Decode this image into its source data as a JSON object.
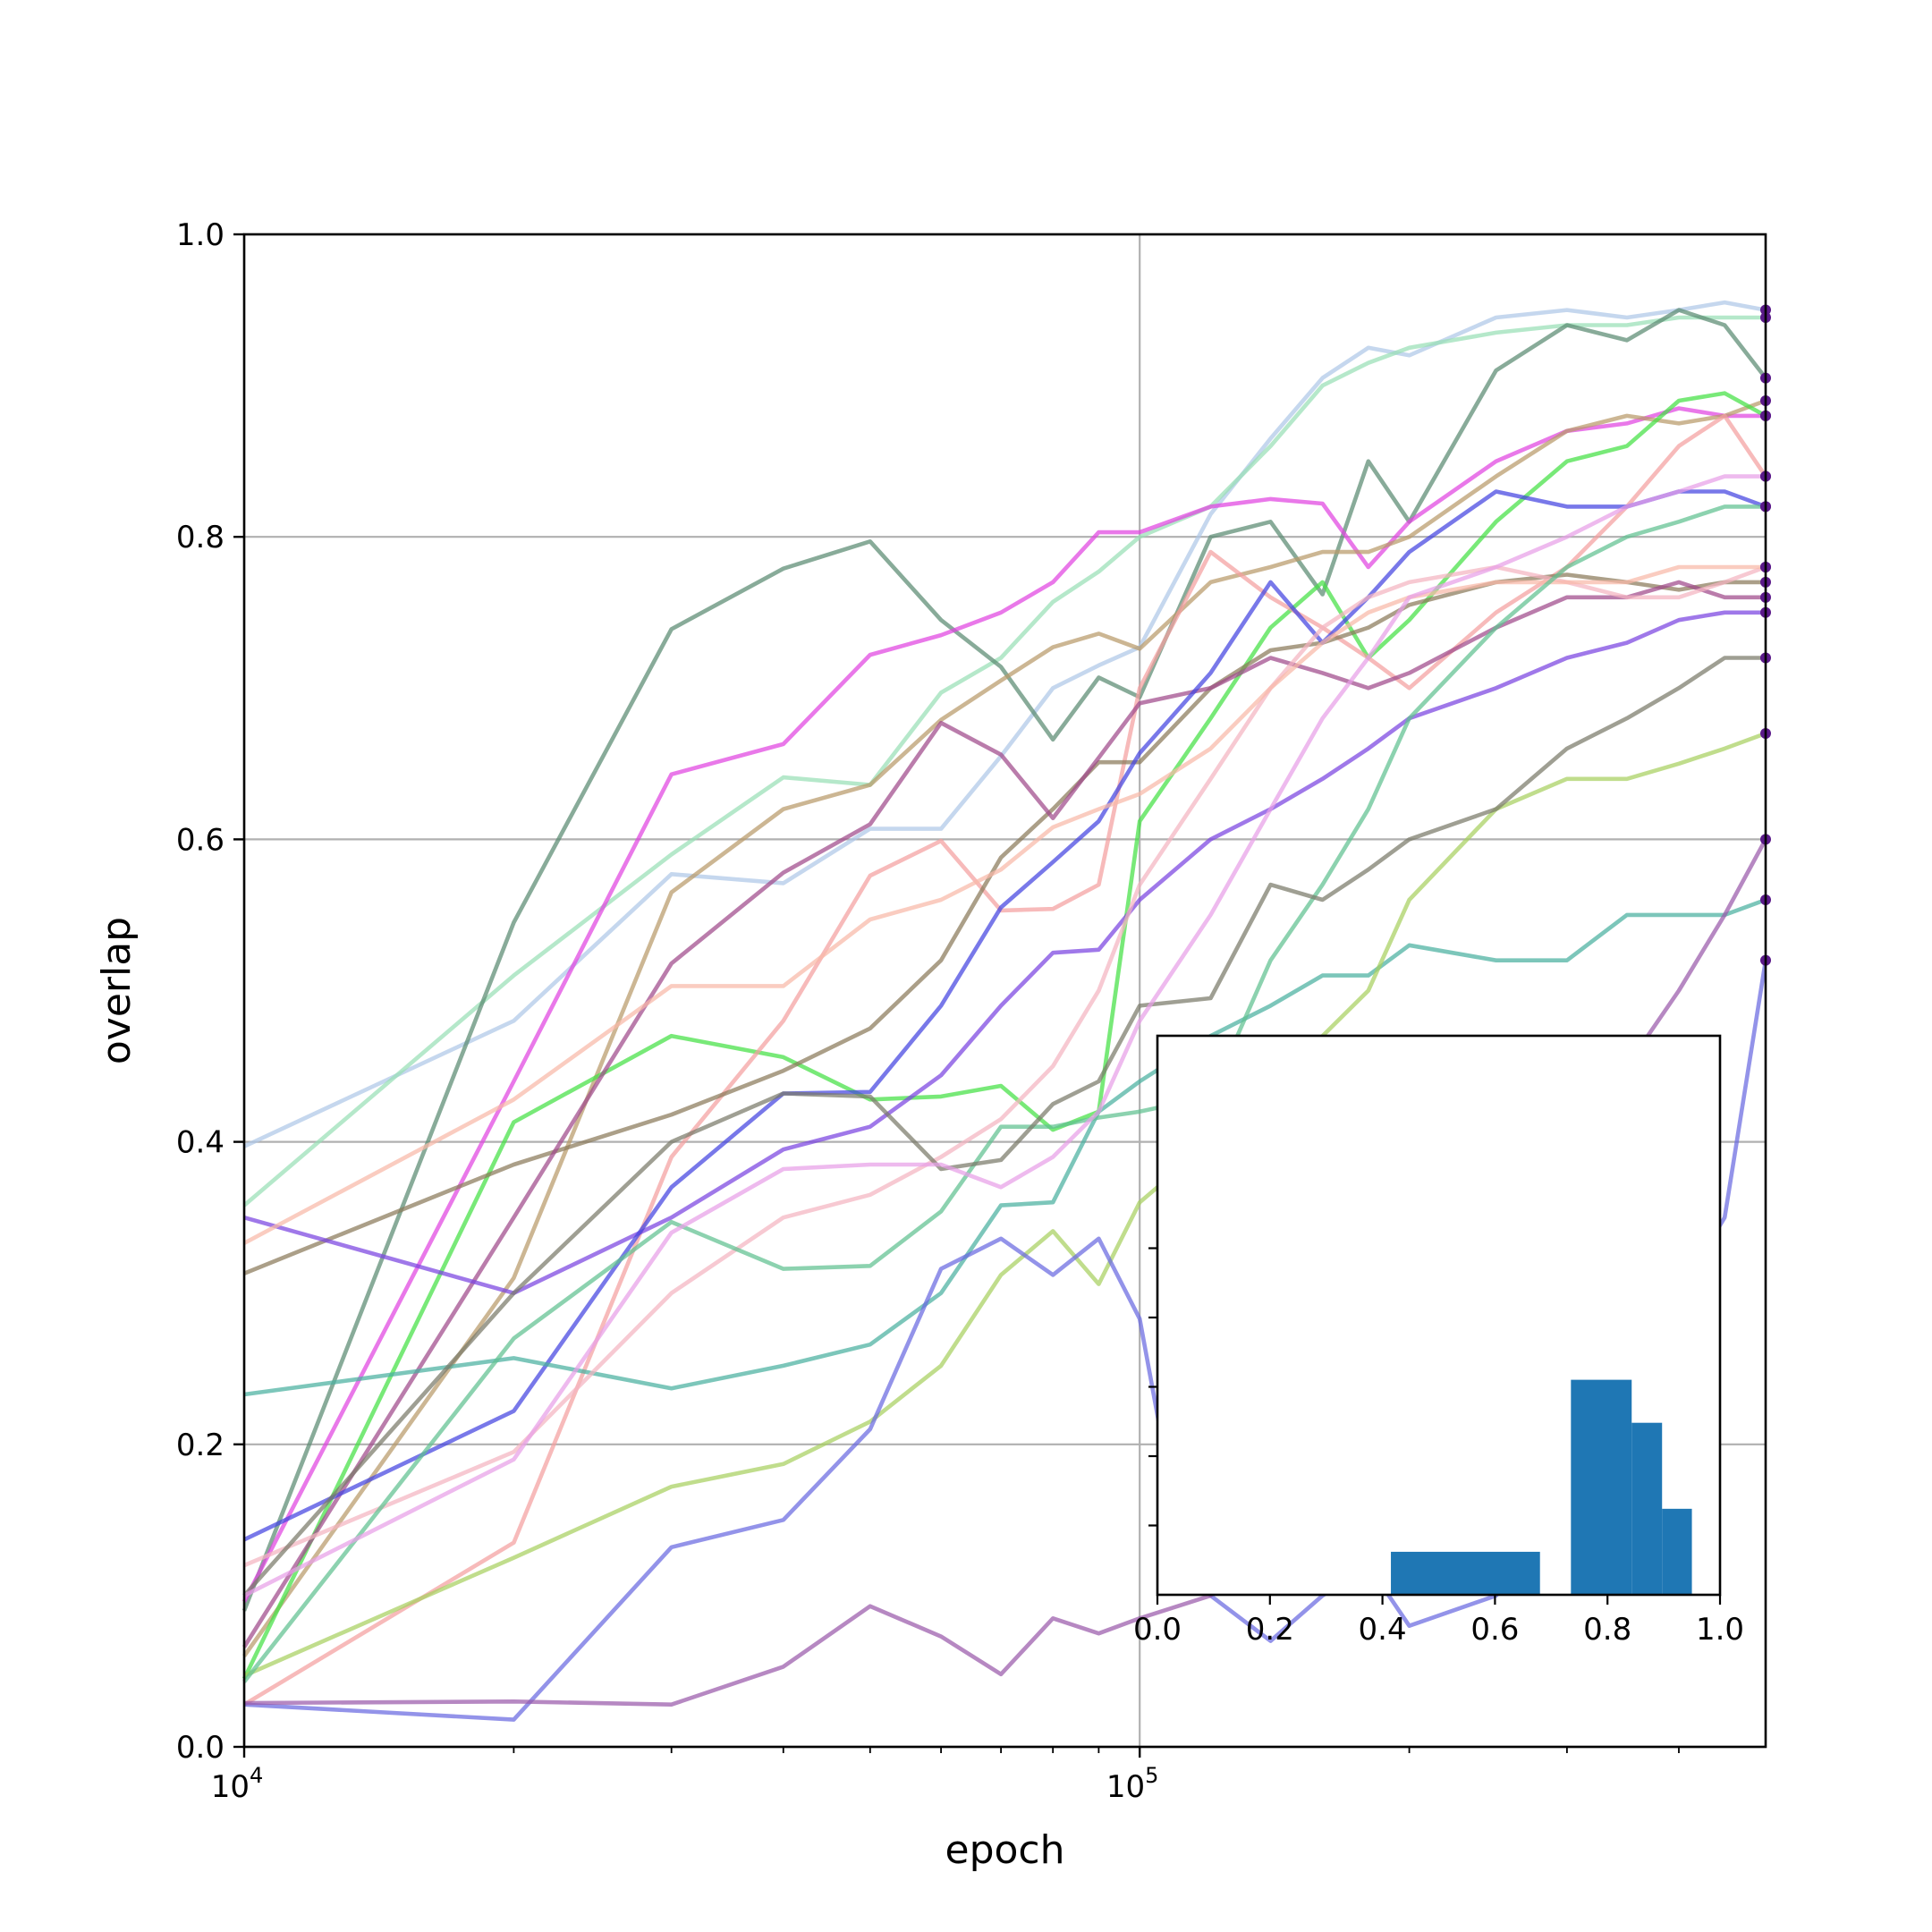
{
  "chart_data": [
    {
      "type": "line",
      "title": "",
      "xlabel": "epoch",
      "ylabel": "overlap",
      "xscale": "log",
      "xlim": [
        10000,
        500000
      ],
      "ylim": [
        0,
        1
      ],
      "grid": true,
      "legend": "none",
      "x_tick_values": [
        10000,
        100000
      ],
      "x_tick_labels": [
        {
          "base": "10",
          "exp": "4"
        },
        {
          "base": "10",
          "exp": "5"
        }
      ],
      "y_tick_values": [
        0,
        0.2,
        0.4,
        0.6,
        0.8,
        1.0
      ],
      "y_tick_labels": [
        "0.0",
        "0.2",
        "0.4",
        "0.6",
        "0.8",
        "1.0"
      ],
      "final_marker_color": "#5b1a8a",
      "series": [
        {
          "color": "#aec7e8",
          "x": [
            10000,
            20000,
            30000,
            40000,
            50000,
            60000,
            70000,
            80000,
            90000,
            100000,
            120000,
            140000,
            160000,
            180000,
            200000,
            250000,
            300000,
            350000,
            400000,
            450000,
            500000
          ],
          "y": [
            0.397,
            0.48,
            0.577,
            0.571,
            0.607,
            0.607,
            0.655,
            0.7,
            0.715,
            0.727,
            0.815,
            0.865,
            0.905,
            0.925,
            0.92,
            0.945,
            0.95,
            0.945,
            0.95,
            0.955,
            0.95
          ]
        },
        {
          "color": "#98dfb6",
          "x": [
            10000,
            20000,
            30000,
            40000,
            50000,
            60000,
            70000,
            80000,
            90000,
            100000,
            120000,
            140000,
            160000,
            180000,
            200000,
            250000,
            300000,
            350000,
            400000,
            450000,
            500000
          ],
          "y": [
            0.358,
            0.51,
            0.59,
            0.641,
            0.636,
            0.697,
            0.72,
            0.757,
            0.777,
            0.8,
            0.82,
            0.86,
            0.9,
            0.915,
            0.925,
            0.935,
            0.94,
            0.94,
            0.945,
            0.945,
            0.945
          ]
        },
        {
          "color": "#5a8a72",
          "x": [
            10000,
            20000,
            30000,
            40000,
            50000,
            60000,
            70000,
            80000,
            90000,
            100000,
            120000,
            140000,
            160000,
            180000,
            200000,
            250000,
            300000,
            350000,
            400000,
            450000,
            500000
          ],
          "y": [
            0.09,
            0.545,
            0.739,
            0.779,
            0.797,
            0.745,
            0.714,
            0.666,
            0.707,
            0.694,
            0.8,
            0.81,
            0.762,
            0.85,
            0.81,
            0.91,
            0.94,
            0.93,
            0.95,
            0.94,
            0.905
          ]
        },
        {
          "color": "#e044e0",
          "x": [
            10000,
            20000,
            30000,
            40000,
            50000,
            60000,
            70000,
            80000,
            90000,
            100000,
            120000,
            140000,
            160000,
            180000,
            200000,
            250000,
            300000,
            350000,
            400000,
            450000,
            500000
          ],
          "y": [
            0.096,
            0.44,
            0.643,
            0.663,
            0.722,
            0.735,
            0.75,
            0.77,
            0.803,
            0.803,
            0.82,
            0.825,
            0.822,
            0.78,
            0.81,
            0.85,
            0.87,
            0.875,
            0.885,
            0.88,
            0.88
          ]
        },
        {
          "color": "#b89a6a",
          "x": [
            10000,
            20000,
            30000,
            40000,
            50000,
            60000,
            70000,
            80000,
            90000,
            100000,
            120000,
            140000,
            160000,
            180000,
            200000,
            250000,
            300000,
            350000,
            400000,
            450000,
            500000
          ],
          "y": [
            0.06,
            0.31,
            0.565,
            0.62,
            0.636,
            0.679,
            0.705,
            0.727,
            0.736,
            0.726,
            0.77,
            0.78,
            0.79,
            0.79,
            0.8,
            0.84,
            0.87,
            0.88,
            0.875,
            0.88,
            0.89
          ]
        },
        {
          "color": "#44e044",
          "x": [
            10000,
            20000,
            30000,
            40000,
            50000,
            60000,
            70000,
            80000,
            90000,
            100000,
            120000,
            140000,
            160000,
            180000,
            200000,
            250000,
            300000,
            350000,
            400000,
            450000,
            500000
          ],
          "y": [
            0.045,
            0.413,
            0.47,
            0.456,
            0.428,
            0.43,
            0.437,
            0.408,
            0.42,
            0.612,
            0.68,
            0.74,
            0.77,
            0.72,
            0.745,
            0.81,
            0.85,
            0.86,
            0.89,
            0.895,
            0.88
          ]
        },
        {
          "color": "#f4a0a0",
          "x": [
            10000,
            20000,
            30000,
            40000,
            50000,
            60000,
            70000,
            80000,
            90000,
            100000,
            120000,
            140000,
            160000,
            180000,
            200000,
            250000,
            300000,
            350000,
            400000,
            450000,
            500000
          ],
          "y": [
            0.028,
            0.135,
            0.39,
            0.48,
            0.576,
            0.599,
            0.553,
            0.554,
            0.57,
            0.7,
            0.79,
            0.76,
            0.74,
            0.72,
            0.7,
            0.75,
            0.78,
            0.82,
            0.86,
            0.88,
            0.84
          ]
        },
        {
          "color": "#8a7a5a",
          "x": [
            10000,
            20000,
            30000,
            40000,
            50000,
            60000,
            70000,
            80000,
            90000,
            100000,
            120000,
            140000,
            160000,
            180000,
            200000,
            250000,
            300000,
            350000,
            400000,
            450000,
            500000
          ],
          "y": [
            0.313,
            0.385,
            0.418,
            0.447,
            0.475,
            0.52,
            0.588,
            0.62,
            0.651,
            0.651,
            0.7,
            0.725,
            0.73,
            0.74,
            0.755,
            0.77,
            0.775,
            0.77,
            0.765,
            0.77,
            0.77
          ]
        },
        {
          "color": "#a04a8a",
          "x": [
            10000,
            20000,
            30000,
            40000,
            50000,
            60000,
            70000,
            80000,
            90000,
            100000,
            120000,
            140000,
            160000,
            180000,
            200000,
            250000,
            300000,
            350000,
            400000,
            450000,
            500000
          ],
          "y": [
            0.066,
            0.35,
            0.518,
            0.578,
            0.61,
            0.677,
            0.656,
            0.614,
            0.654,
            0.69,
            0.7,
            0.72,
            0.71,
            0.7,
            0.71,
            0.74,
            0.76,
            0.76,
            0.77,
            0.76,
            0.76
          ]
        },
        {
          "color": "#7a44e0",
          "x": [
            10000,
            20000,
            30000,
            40000,
            50000,
            60000,
            70000,
            80000,
            90000,
            100000,
            120000,
            140000,
            160000,
            180000,
            200000,
            250000,
            300000,
            350000,
            400000,
            450000,
            500000
          ],
          "y": [
            0.35,
            0.3,
            0.35,
            0.395,
            0.41,
            0.444,
            0.49,
            0.525,
            0.527,
            0.56,
            0.6,
            0.62,
            0.64,
            0.66,
            0.68,
            0.7,
            0.72,
            0.73,
            0.745,
            0.75,
            0.75
          ]
        },
        {
          "color": "#4444e0",
          "x": [
            10000,
            20000,
            30000,
            40000,
            50000,
            60000,
            70000,
            80000,
            90000,
            100000,
            120000,
            140000,
            160000,
            180000,
            200000,
            250000,
            300000,
            350000,
            400000,
            450000,
            500000
          ],
          "y": [
            0.137,
            0.222,
            0.37,
            0.432,
            0.433,
            0.49,
            0.555,
            0.585,
            0.612,
            0.657,
            0.71,
            0.77,
            0.73,
            0.76,
            0.79,
            0.83,
            0.82,
            0.82,
            0.83,
            0.83,
            0.82
          ]
        },
        {
          "color": "#4ab0a0",
          "x": [
            10000,
            20000,
            30000,
            40000,
            50000,
            60000,
            70000,
            80000,
            90000,
            100000,
            120000,
            140000,
            160000,
            180000,
            200000,
            250000,
            300000,
            350000,
            400000,
            450000,
            500000
          ],
          "y": [
            0.233,
            0.257,
            0.237,
            0.252,
            0.266,
            0.3,
            0.358,
            0.36,
            0.42,
            0.44,
            0.47,
            0.49,
            0.51,
            0.51,
            0.53,
            0.52,
            0.52,
            0.55,
            0.55,
            0.55,
            0.56
          ]
        },
        {
          "color": "#a8d060",
          "x": [
            10000,
            20000,
            30000,
            40000,
            50000,
            60000,
            70000,
            80000,
            90000,
            100000,
            120000,
            140000,
            160000,
            180000,
            200000,
            250000,
            300000,
            350000,
            400000,
            450000,
            500000
          ],
          "y": [
            0.047,
            0.125,
            0.172,
            0.187,
            0.215,
            0.252,
            0.312,
            0.341,
            0.306,
            0.36,
            0.4,
            0.44,
            0.47,
            0.5,
            0.56,
            0.62,
            0.64,
            0.64,
            0.65,
            0.66,
            0.67
          ]
        },
        {
          "color": "#6a6ae0",
          "x": [
            10000,
            20000,
            30000,
            40000,
            50000,
            60000,
            70000,
            80000,
            90000,
            100000,
            110000,
            120000,
            140000,
            160000,
            180000,
            200000,
            250000,
            300000,
            350000,
            400000,
            450000,
            500000
          ],
          "y": [
            0.028,
            0.018,
            0.132,
            0.15,
            0.21,
            0.316,
            0.336,
            0.312,
            0.336,
            0.283,
            0.15,
            0.1,
            0.07,
            0.1,
            0.12,
            0.08,
            0.1,
            0.15,
            0.2,
            0.3,
            0.35,
            0.52
          ]
        },
        {
          "color": "#9a5aaa",
          "x": [
            10000,
            20000,
            30000,
            40000,
            50000,
            60000,
            70000,
            80000,
            90000,
            100000,
            120000,
            140000,
            160000,
            180000,
            200000,
            250000,
            300000,
            350000,
            400000,
            450000,
            500000
          ],
          "y": [
            0.029,
            0.03,
            0.028,
            0.053,
            0.093,
            0.073,
            0.048,
            0.085,
            0.075,
            0.085,
            0.1,
            0.15,
            0.2,
            0.25,
            0.3,
            0.35,
            0.4,
            0.45,
            0.5,
            0.55,
            0.6
          ]
        },
        {
          "color": "#f4b4c0",
          "x": [
            10000,
            20000,
            30000,
            40000,
            50000,
            60000,
            70000,
            80000,
            90000,
            100000,
            120000,
            140000,
            160000,
            180000,
            200000,
            250000,
            300000,
            350000,
            400000,
            450000,
            500000
          ],
          "y": [
            0.12,
            0.195,
            0.3,
            0.35,
            0.365,
            0.39,
            0.415,
            0.45,
            0.5,
            0.57,
            0.64,
            0.7,
            0.74,
            0.76,
            0.77,
            0.78,
            0.77,
            0.76,
            0.76,
            0.77,
            0.78
          ]
        },
        {
          "color": "#f8b8a8",
          "x": [
            10000,
            20000,
            30000,
            40000,
            50000,
            60000,
            70000,
            80000,
            90000,
            100000,
            120000,
            140000,
            160000,
            180000,
            200000,
            250000,
            300000,
            350000,
            400000,
            450000,
            500000
          ],
          "y": [
            0.333,
            0.428,
            0.503,
            0.503,
            0.547,
            0.56,
            0.58,
            0.608,
            0.62,
            0.63,
            0.66,
            0.7,
            0.73,
            0.75,
            0.76,
            0.77,
            0.77,
            0.77,
            0.78,
            0.78,
            0.78
          ]
        },
        {
          "color": "#60c090",
          "x": [
            10000,
            20000,
            30000,
            40000,
            50000,
            60000,
            70000,
            80000,
            90000,
            100000,
            120000,
            140000,
            160000,
            180000,
            200000,
            250000,
            300000,
            350000,
            400000,
            450000,
            500000
          ],
          "y": [
            0.043,
            0.27,
            0.347,
            0.316,
            0.318,
            0.354,
            0.41,
            0.41,
            0.416,
            0.42,
            0.43,
            0.52,
            0.57,
            0.62,
            0.68,
            0.74,
            0.78,
            0.8,
            0.81,
            0.82,
            0.82
          ]
        },
        {
          "color": "#7a7a6a",
          "x": [
            10000,
            20000,
            30000,
            40000,
            50000,
            60000,
            70000,
            80000,
            90000,
            100000,
            120000,
            140000,
            160000,
            180000,
            200000,
            250000,
            300000,
            350000,
            400000,
            450000,
            500000
          ],
          "y": [
            0.1,
            0.3,
            0.4,
            0.432,
            0.43,
            0.382,
            0.388,
            0.425,
            0.44,
            0.49,
            0.495,
            0.57,
            0.56,
            0.58,
            0.6,
            0.62,
            0.66,
            0.68,
            0.7,
            0.72,
            0.72
          ]
        },
        {
          "color": "#e8a0e8",
          "x": [
            10000,
            20000,
            30000,
            40000,
            50000,
            60000,
            70000,
            80000,
            90000,
            100000,
            120000,
            140000,
            160000,
            180000,
            200000,
            250000,
            300000,
            350000,
            400000,
            450000,
            500000
          ],
          "y": [
            0.1,
            0.19,
            0.34,
            0.382,
            0.385,
            0.385,
            0.37,
            0.39,
            0.42,
            0.48,
            0.55,
            0.62,
            0.68,
            0.72,
            0.76,
            0.78,
            0.8,
            0.82,
            0.83,
            0.84,
            0.84
          ]
        }
      ]
    },
    {
      "type": "bar",
      "subtype": "histogram",
      "title": "",
      "xlabel": "",
      "ylabel": "",
      "xlim": [
        0,
        1
      ],
      "x_tick_values": [
        0,
        0.2,
        0.4,
        0.6,
        0.8,
        1.0
      ],
      "x_tick_labels": [
        "0.0",
        "0.2",
        "0.4",
        "0.6",
        "0.8",
        "1.0"
      ],
      "y_tick_count": 5,
      "color": "#1f77b4",
      "bins": [
        [
          0.415,
          0.68
        ],
        [
          0.735,
          0.843
        ],
        [
          0.843,
          0.897
        ],
        [
          0.897,
          0.95
        ]
      ],
      "values": [
        1,
        5,
        4,
        2
      ],
      "ylim": [
        0,
        13
      ]
    }
  ]
}
